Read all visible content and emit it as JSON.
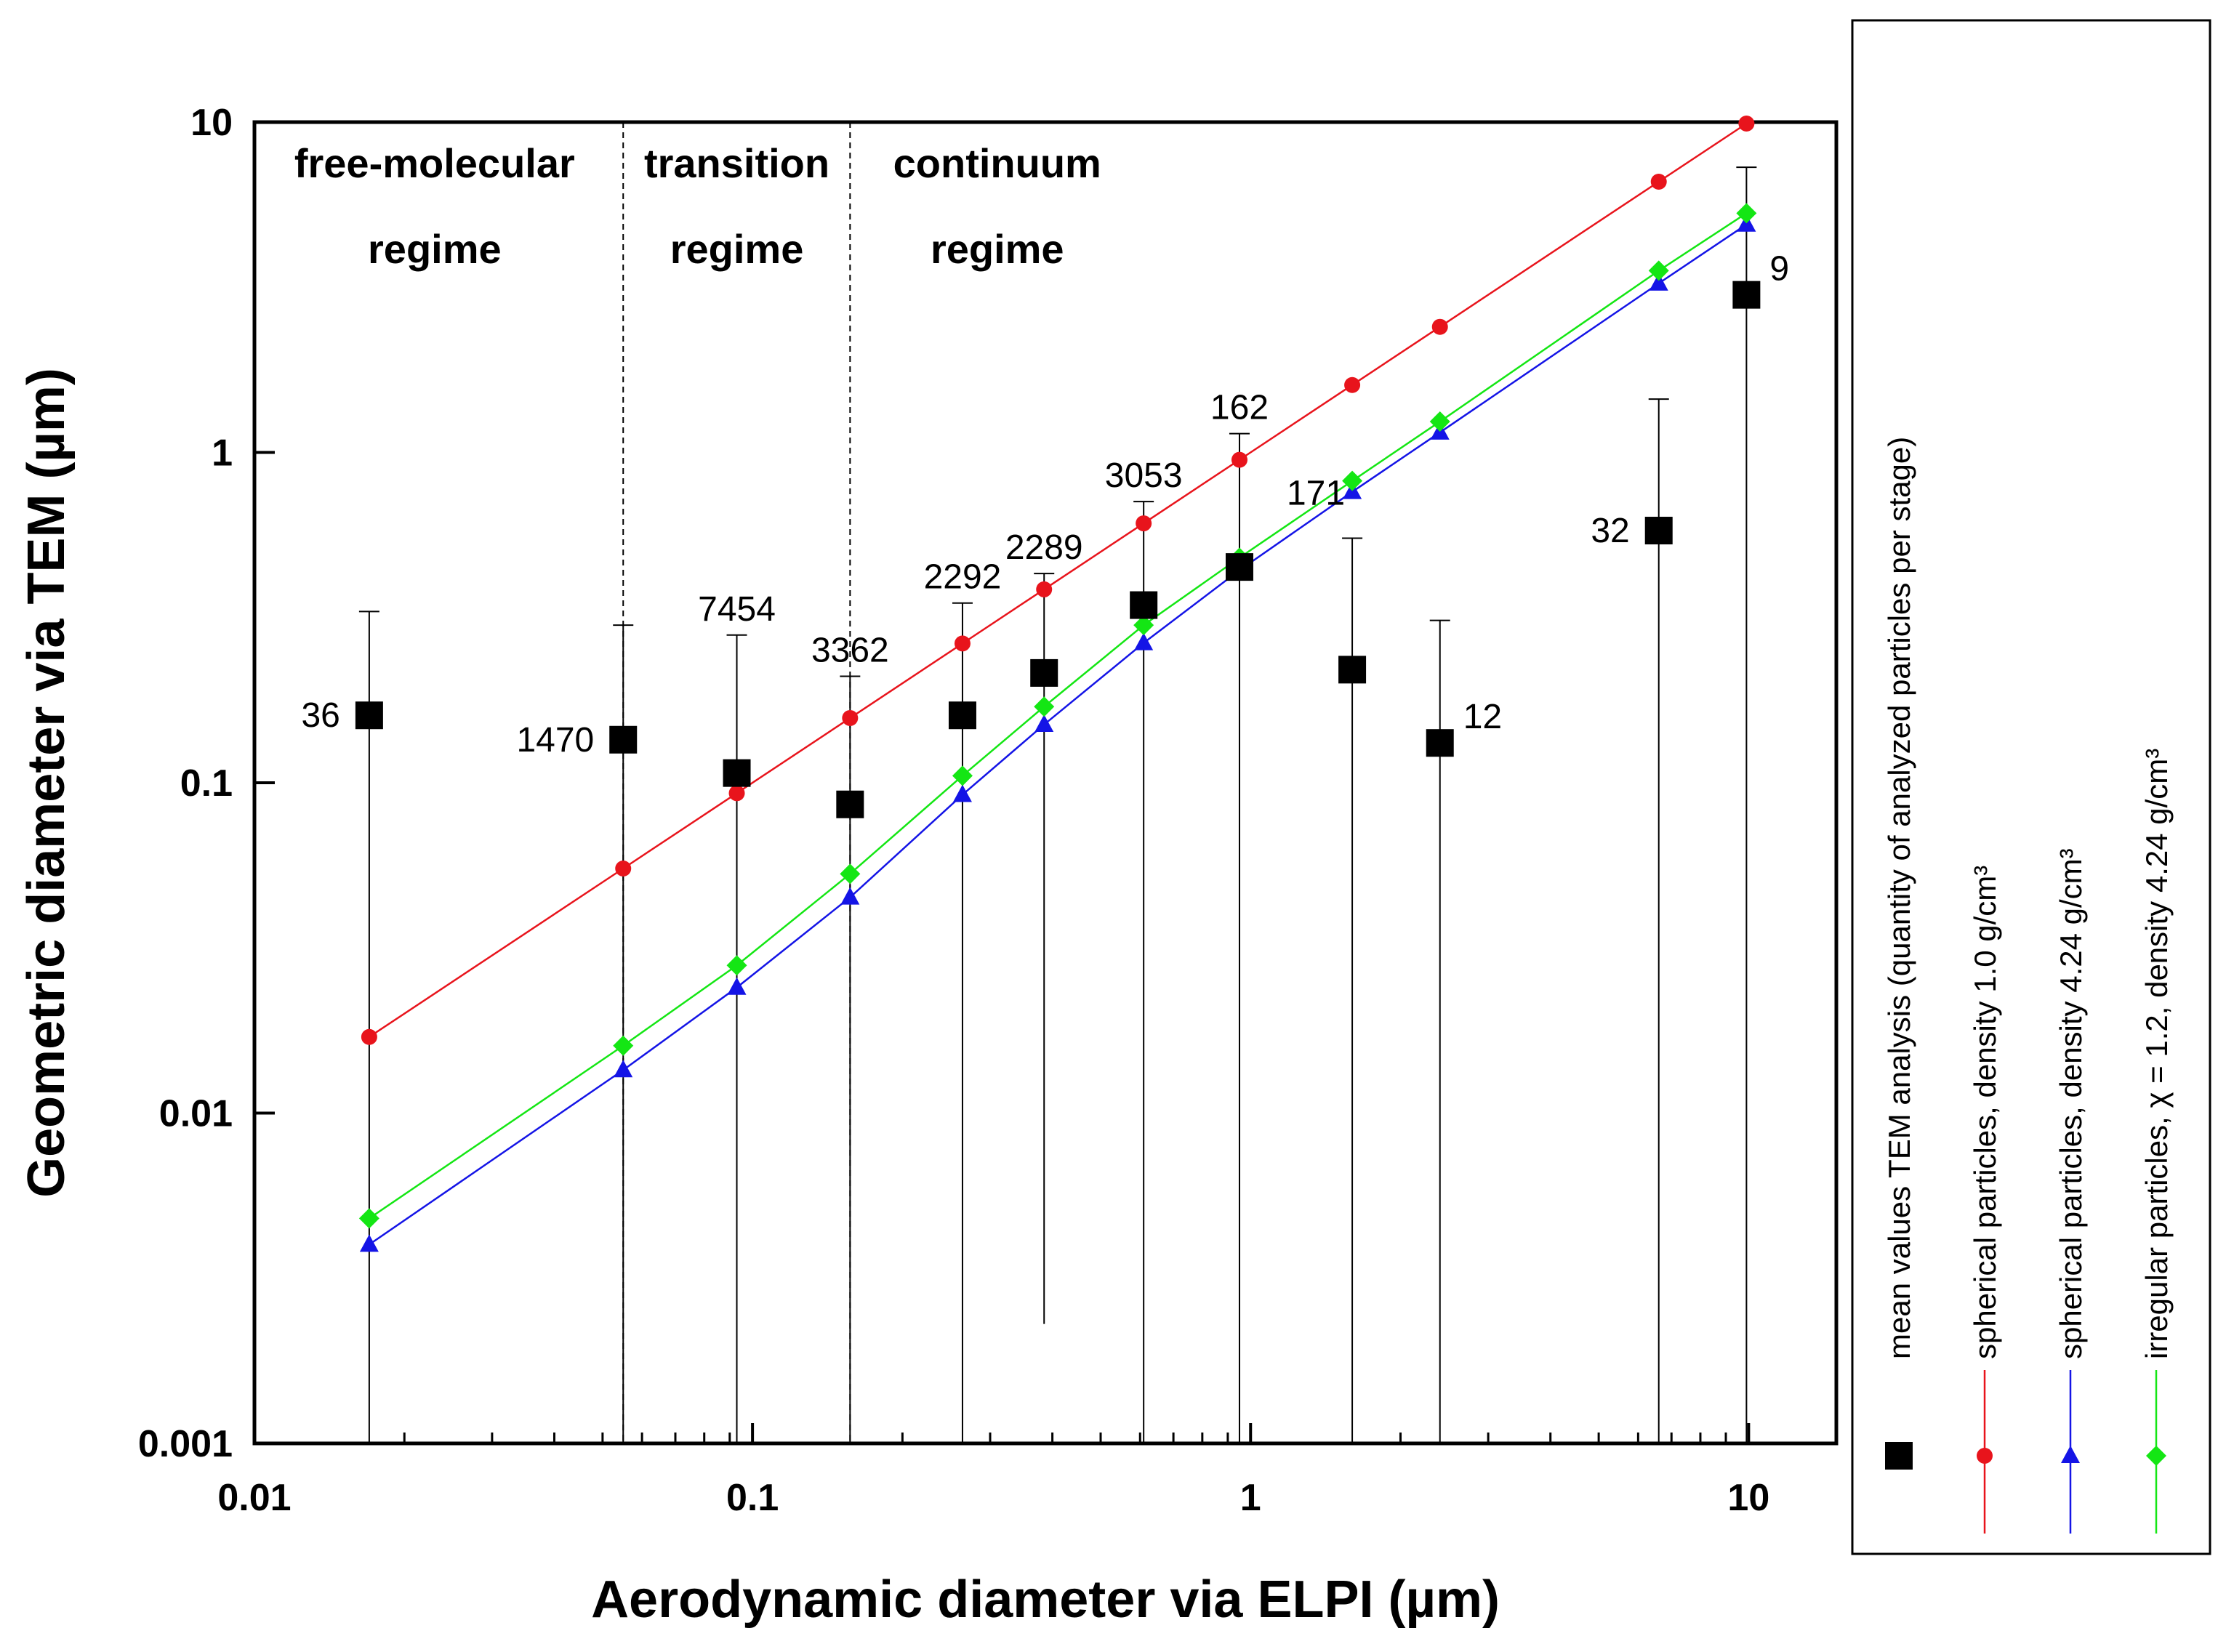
{
  "chart_data": {
    "type": "scatter",
    "xscale": "log",
    "yscale": "log",
    "xlim": [
      0.01,
      15
    ],
    "ylim": [
      0.001,
      10
    ],
    "xlabel": "Aerodynamic diameter via ELPI (µm)",
    "ylabel": "Geometric diameter via TEM (µm)",
    "xticks": [
      {
        "value": 0.01,
        "label": "0.01"
      },
      {
        "value": 0.1,
        "label": "0.1"
      },
      {
        "value": 1,
        "label": "1"
      },
      {
        "value": 10,
        "label": "10"
      }
    ],
    "yticks": [
      {
        "value": 0.001,
        "label": "0.001"
      },
      {
        "value": 0.01,
        "label": "0.01"
      },
      {
        "value": 0.1,
        "label": "0.1"
      },
      {
        "value": 1,
        "label": "1"
      },
      {
        "value": 10,
        "label": "10"
      }
    ],
    "regime_boundaries": [
      0.055,
      0.157
    ],
    "regimes": [
      {
        "line1": "free-molecular",
        "line2": "regime",
        "x": 0.023
      },
      {
        "line1": "transition",
        "line2": "regime",
        "x": 0.093
      },
      {
        "line1": "continuum",
        "line2": "regime",
        "x": 0.31
      }
    ],
    "tem": {
      "name": "mean values TEM analysis (quantity of analyzed particles per stage)",
      "color": "#000000",
      "marker": "square",
      "points": [
        {
          "x": 0.017,
          "y": 0.16,
          "err_lo": 0.001,
          "err_hi": 0.33,
          "count": "36",
          "label_pos": "left"
        },
        {
          "x": 0.055,
          "y": 0.135,
          "err_lo": 0.001,
          "err_hi": 0.3,
          "count": "1470",
          "label_pos": "left"
        },
        {
          "x": 0.093,
          "y": 0.107,
          "err_lo": 0.001,
          "err_hi": 0.28,
          "count": "7454",
          "label_pos": "above"
        },
        {
          "x": 0.157,
          "y": 0.086,
          "err_lo": 0.001,
          "err_hi": 0.21,
          "count": "3362",
          "label_pos": "above"
        },
        {
          "x": 0.264,
          "y": 0.16,
          "err_lo": 0.001,
          "err_hi": 0.35,
          "count": "2292",
          "label_pos": "above"
        },
        {
          "x": 0.385,
          "y": 0.215,
          "err_lo": 0.0023,
          "err_hi": 0.43,
          "count": "2289",
          "label_pos": "above"
        },
        {
          "x": 0.61,
          "y": 0.345,
          "err_lo": 0.001,
          "err_hi": 0.71,
          "count": "3053",
          "label_pos": "above"
        },
        {
          "x": 0.95,
          "y": 0.45,
          "err_lo": 0.001,
          "err_hi": 1.14,
          "count": "162",
          "label_pos": "above"
        },
        {
          "x": 1.6,
          "y": 0.22,
          "err_lo": 0.001,
          "err_hi": 0.55,
          "count": "171",
          "label_pos": "above-left"
        },
        {
          "x": 2.4,
          "y": 0.132,
          "err_lo": 0.001,
          "err_hi": 0.31,
          "count": "12",
          "label_pos": "right"
        },
        {
          "x": 6.6,
          "y": 0.58,
          "err_lo": 0.001,
          "err_hi": 1.45,
          "count": "32",
          "label_pos": "left"
        },
        {
          "x": 9.9,
          "y": 3.0,
          "err_lo": 0.001,
          "err_hi": 7.3,
          "count": "9",
          "label_pos": "right"
        }
      ]
    },
    "series": [
      {
        "name": "spherical particles, density 1.0 g/cm³",
        "color": "#e8141c",
        "marker": "circle",
        "x": [
          0.017,
          0.055,
          0.093,
          0.157,
          0.264,
          0.385,
          0.61,
          0.95,
          1.6,
          2.4,
          6.6,
          9.9
        ],
        "y": [
          0.017,
          0.055,
          0.093,
          0.157,
          0.264,
          0.385,
          0.61,
          0.95,
          1.6,
          2.4,
          6.6,
          9.9
        ]
      },
      {
        "name": "spherical particles, density 4.24 g/cm³",
        "color": "#1414e6",
        "marker": "triangle",
        "x": [
          0.017,
          0.055,
          0.093,
          0.157,
          0.264,
          0.385,
          0.61,
          0.95,
          1.6,
          2.4,
          6.6,
          9.9
        ],
        "y": [
          0.004,
          0.0135,
          0.024,
          0.045,
          0.092,
          0.15,
          0.265,
          0.44,
          0.76,
          1.15,
          3.25,
          4.9
        ]
      },
      {
        "name": "irregular particles, χ = 1.2, density 4.24 g/cm³",
        "color": "#14e614",
        "marker": "diamond",
        "x": [
          0.017,
          0.055,
          0.093,
          0.157,
          0.264,
          0.385,
          0.61,
          0.95,
          1.6,
          2.4,
          6.6,
          9.9
        ],
        "y": [
          0.0048,
          0.016,
          0.028,
          0.053,
          0.105,
          0.17,
          0.3,
          0.48,
          0.82,
          1.24,
          3.55,
          5.3
        ]
      }
    ]
  }
}
